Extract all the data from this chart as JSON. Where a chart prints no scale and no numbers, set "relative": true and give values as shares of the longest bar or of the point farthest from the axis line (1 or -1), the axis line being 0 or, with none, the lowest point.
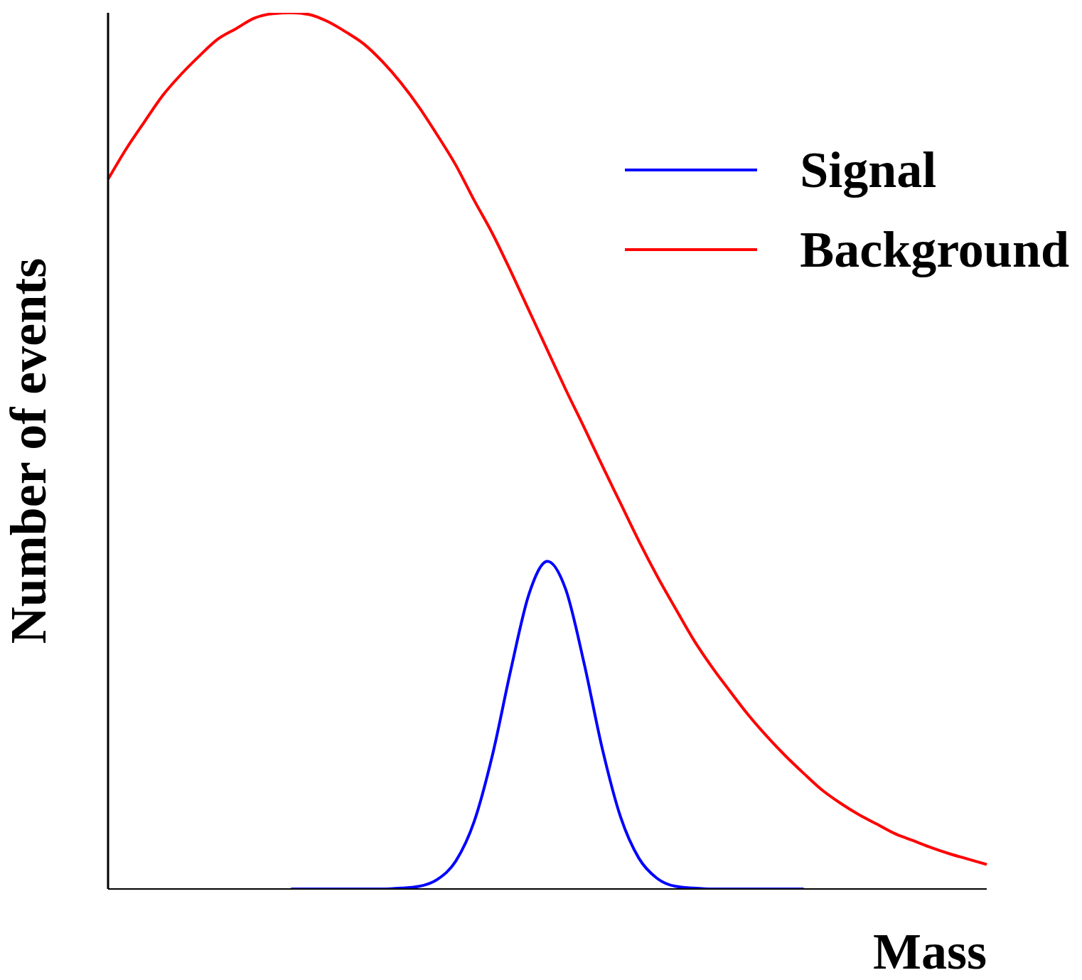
{
  "chart_data": {
    "type": "line",
    "relative": true,
    "xlabel": "Mass",
    "ylabel": "Number of events",
    "legend": "top right",
    "categories": [
      null,
      null,
      null,
      null,
      null,
      null,
      null,
      null,
      null,
      null,
      null,
      null,
      null,
      null,
      null,
      null,
      null,
      null,
      null,
      null,
      null,
      null,
      null,
      null,
      null,
      null,
      null,
      null,
      null,
      null,
      null,
      null,
      null,
      null,
      null,
      null,
      null,
      null,
      null,
      null,
      null,
      null,
      null,
      null,
      null,
      null,
      null,
      null,
      null
    ],
    "series": [
      {
        "name": "Signal",
        "color": "#0000ff",
        "values": [
          null,
          null,
          null,
          null,
          null,
          null,
          null,
          null,
          null,
          null,
          0,
          0,
          0,
          0,
          0,
          0,
          0.001,
          0.003,
          0.011,
          0.032,
          0.077,
          0.153,
          0.25,
          0.337,
          0.374,
          0.342,
          0.258,
          0.16,
          0.082,
          0.035,
          0.012,
          0.003,
          0.001,
          0,
          0,
          0,
          0,
          0,
          0,
          null,
          null,
          null,
          null,
          null,
          null,
          null,
          null,
          null,
          null
        ]
      },
      {
        "name": "Background",
        "color": "#ff0000",
        "values": [
          0.81,
          0.845,
          0.876,
          0.906,
          0.93,
          0.951,
          0.97,
          0.982,
          0.994,
          0.999,
          1,
          0.998,
          0.99,
          0.978,
          0.964,
          0.944,
          0.92,
          0.892,
          0.86,
          0.826,
          0.786,
          0.748,
          0.705,
          0.66,
          0.615,
          0.57,
          0.527,
          0.483,
          0.44,
          0.397,
          0.357,
          0.32,
          0.284,
          0.253,
          0.225,
          0.198,
          0.174,
          0.152,
          0.132,
          0.113,
          0.098,
          0.085,
          0.074,
          0.063,
          0.055,
          0.047,
          0.04,
          0.034,
          0.028
        ]
      }
    ]
  }
}
